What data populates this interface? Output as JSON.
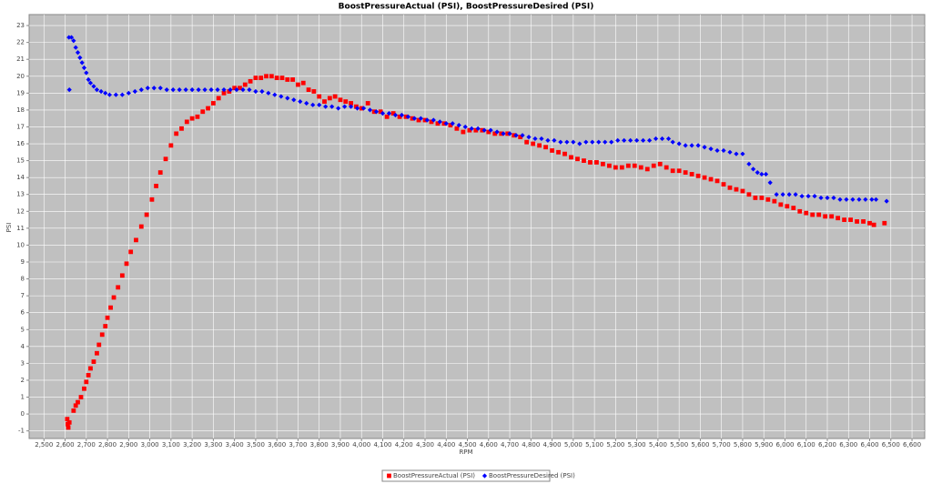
{
  "chart_data": {
    "type": "scatter",
    "title": "BoostPressureActual (PSI), BoostPressureDesired (PSI)",
    "x_label": "RPM",
    "y_label": "PSI",
    "xlim": [
      2430,
      6660
    ],
    "ylim": [
      -1.45,
      23.65
    ],
    "xticks": [
      {
        "value": 2500,
        "label": "2,500"
      },
      {
        "value": 2600,
        "label": "2,600"
      },
      {
        "value": 2700,
        "label": "2,700"
      },
      {
        "value": 2800,
        "label": "2,800"
      },
      {
        "value": 2900,
        "label": "2,900"
      },
      {
        "value": 3000,
        "label": "3,000"
      },
      {
        "value": 3100,
        "label": "3,100"
      },
      {
        "value": 3200,
        "label": "3,200"
      },
      {
        "value": 3300,
        "label": "3,300"
      },
      {
        "value": 3400,
        "label": "3,400"
      },
      {
        "value": 3500,
        "label": "3,500"
      },
      {
        "value": 3600,
        "label": "3,600"
      },
      {
        "value": 3700,
        "label": "3,700"
      },
      {
        "value": 3800,
        "label": "3,800"
      },
      {
        "value": 3900,
        "label": "3,900"
      },
      {
        "value": 4000,
        "label": "4,000"
      },
      {
        "value": 4100,
        "label": "4,100"
      },
      {
        "value": 4200,
        "label": "4,200"
      },
      {
        "value": 4300,
        "label": "4,300"
      },
      {
        "value": 4400,
        "label": "4,400"
      },
      {
        "value": 4500,
        "label": "4,500"
      },
      {
        "value": 4600,
        "label": "4,600"
      },
      {
        "value": 4700,
        "label": "4,700"
      },
      {
        "value": 4800,
        "label": "4,800"
      },
      {
        "value": 4900,
        "label": "4,900"
      },
      {
        "value": 5000,
        "label": "5,000"
      },
      {
        "value": 5100,
        "label": "5,100"
      },
      {
        "value": 5200,
        "label": "5,200"
      },
      {
        "value": 5300,
        "label": "5,300"
      },
      {
        "value": 5400,
        "label": "5,400"
      },
      {
        "value": 5500,
        "label": "5,500"
      },
      {
        "value": 5600,
        "label": "5,600"
      },
      {
        "value": 5700,
        "label": "5,700"
      },
      {
        "value": 5800,
        "label": "5,800"
      },
      {
        "value": 5900,
        "label": "5,900"
      },
      {
        "value": 6000,
        "label": "6,000"
      },
      {
        "value": 6100,
        "label": "6,100"
      },
      {
        "value": 6200,
        "label": "6,200"
      },
      {
        "value": 6300,
        "label": "6,300"
      },
      {
        "value": 6400,
        "label": "6,400"
      },
      {
        "value": 6500,
        "label": "6,500"
      },
      {
        "value": 6600,
        "label": "6,600"
      }
    ],
    "yticks": [
      -1,
      0,
      1,
      2,
      3,
      4,
      5,
      6,
      7,
      8,
      9,
      10,
      11,
      12,
      13,
      14,
      15,
      16,
      17,
      18,
      19,
      20,
      21,
      22,
      23
    ],
    "grid": true,
    "legend": "bottom",
    "series": [
      {
        "name": "BoostPressureActual (PSI)",
        "color": "#ff0000",
        "marker": "square",
        "x": [
          2610,
          2612,
          2615,
          2620,
          2640,
          2650,
          2660,
          2675,
          2690,
          2700,
          2710,
          2720,
          2735,
          2750,
          2760,
          2775,
          2790,
          2800,
          2815,
          2830,
          2850,
          2870,
          2890,
          2910,
          2935,
          2960,
          2985,
          3010,
          3030,
          3050,
          3075,
          3100,
          3125,
          3150,
          3175,
          3200,
          3225,
          3250,
          3275,
          3300,
          3325,
          3350,
          3375,
          3400,
          3425,
          3450,
          3475,
          3500,
          3525,
          3550,
          3575,
          3600,
          3625,
          3650,
          3675,
          3700,
          3725,
          3750,
          3775,
          3800,
          3825,
          3850,
          3875,
          3900,
          3925,
          3950,
          3975,
          4000,
          4030,
          4060,
          4090,
          4120,
          4150,
          4180,
          4210,
          4240,
          4270,
          4300,
          4330,
          4360,
          4390,
          4420,
          4450,
          4480,
          4510,
          4540,
          4570,
          4600,
          4630,
          4660,
          4690,
          4720,
          4750,
          4780,
          4810,
          4840,
          4870,
          4900,
          4930,
          4960,
          4990,
          5020,
          5050,
          5080,
          5110,
          5140,
          5170,
          5200,
          5230,
          5260,
          5290,
          5320,
          5350,
          5380,
          5410,
          5440,
          5470,
          5500,
          5530,
          5560,
          5590,
          5620,
          5650,
          5680,
          5710,
          5740,
          5770,
          5800,
          5830,
          5860,
          5890,
          5920,
          5950,
          5980,
          6010,
          6040,
          6070,
          6100,
          6130,
          6160,
          6190,
          6220,
          6250,
          6280,
          6310,
          6340,
          6370,
          6400,
          6420,
          6470
        ],
        "values": [
          -0.3,
          -0.6,
          -0.8,
          -0.5,
          0.2,
          0.5,
          0.7,
          1.0,
          1.5,
          1.9,
          2.3,
          2.7,
          3.1,
          3.6,
          4.1,
          4.7,
          5.2,
          5.7,
          6.3,
          6.9,
          7.5,
          8.2,
          8.9,
          9.6,
          10.3,
          11.1,
          11.8,
          12.7,
          13.5,
          14.3,
          15.1,
          15.9,
          16.6,
          16.9,
          17.3,
          17.5,
          17.6,
          17.9,
          18.1,
          18.4,
          18.7,
          19.0,
          19.1,
          19.3,
          19.3,
          19.5,
          19.7,
          19.9,
          19.9,
          20.0,
          20.0,
          19.9,
          19.9,
          19.8,
          19.8,
          19.5,
          19.6,
          19.2,
          19.1,
          18.8,
          18.5,
          18.7,
          18.8,
          18.6,
          18.5,
          18.4,
          18.2,
          18.1,
          18.4,
          17.9,
          17.9,
          17.6,
          17.8,
          17.6,
          17.6,
          17.5,
          17.4,
          17.4,
          17.3,
          17.2,
          17.2,
          17.1,
          16.9,
          16.7,
          16.8,
          16.8,
          16.8,
          16.7,
          16.6,
          16.6,
          16.6,
          16.5,
          16.4,
          16.1,
          16.0,
          15.9,
          15.8,
          15.6,
          15.5,
          15.4,
          15.2,
          15.1,
          15.0,
          14.9,
          14.9,
          14.8,
          14.7,
          14.6,
          14.6,
          14.7,
          14.7,
          14.6,
          14.5,
          14.7,
          14.8,
          14.6,
          14.4,
          14.4,
          14.3,
          14.2,
          14.1,
          14.0,
          13.9,
          13.8,
          13.6,
          13.4,
          13.3,
          13.2,
          13.0,
          12.8,
          12.8,
          12.7,
          12.6,
          12.4,
          12.3,
          12.2,
          12.0,
          11.9,
          11.8,
          11.8,
          11.7,
          11.7,
          11.6,
          11.5,
          11.5,
          11.4,
          11.4,
          11.3,
          11.2,
          11.3
        ]
      },
      {
        "name": "BoostPressureDesired (PSI)",
        "color": "#0000ff",
        "marker": "diamond",
        "x": [
          2620,
          2618,
          2630,
          2640,
          2650,
          2660,
          2670,
          2680,
          2690,
          2700,
          2710,
          2720,
          2735,
          2750,
          2770,
          2790,
          2810,
          2840,
          2870,
          2900,
          2930,
          2960,
          2990,
          3020,
          3050,
          3080,
          3110,
          3140,
          3170,
          3200,
          3230,
          3260,
          3290,
          3320,
          3350,
          3380,
          3410,
          3440,
          3470,
          3500,
          3530,
          3560,
          3590,
          3620,
          3650,
          3680,
          3710,
          3740,
          3770,
          3800,
          3830,
          3860,
          3890,
          3920,
          3950,
          3980,
          4010,
          4040,
          4070,
          4100,
          4130,
          4160,
          4190,
          4220,
          4250,
          4280,
          4310,
          4340,
          4370,
          4400,
          4430,
          4460,
          4490,
          4520,
          4550,
          4580,
          4610,
          4640,
          4670,
          4700,
          4730,
          4760,
          4790,
          4820,
          4850,
          4880,
          4910,
          4940,
          4970,
          5000,
          5030,
          5060,
          5090,
          5120,
          5150,
          5180,
          5210,
          5240,
          5270,
          5300,
          5330,
          5360,
          5390,
          5420,
          5450,
          5470,
          5500,
          5530,
          5560,
          5590,
          5620,
          5650,
          5680,
          5710,
          5740,
          5770,
          5800,
          5830,
          5850,
          5870,
          5890,
          5910,
          5930,
          5960,
          5990,
          6020,
          6050,
          6080,
          6110,
          6140,
          6170,
          6200,
          6230,
          6260,
          6290,
          6320,
          6350,
          6380,
          6410,
          6430,
          6480
        ],
        "values": [
          19.2,
          22.3,
          22.3,
          22.1,
          21.7,
          21.4,
          21.1,
          20.8,
          20.5,
          20.2,
          19.8,
          19.6,
          19.4,
          19.2,
          19.1,
          19.0,
          18.9,
          18.9,
          18.9,
          19.0,
          19.1,
          19.2,
          19.3,
          19.3,
          19.3,
          19.2,
          19.2,
          19.2,
          19.2,
          19.2,
          19.2,
          19.2,
          19.2,
          19.2,
          19.2,
          19.2,
          19.2,
          19.2,
          19.2,
          19.1,
          19.1,
          19.0,
          18.9,
          18.8,
          18.7,
          18.6,
          18.5,
          18.4,
          18.3,
          18.3,
          18.2,
          18.2,
          18.1,
          18.2,
          18.2,
          18.1,
          18.1,
          18.0,
          17.9,
          17.8,
          17.8,
          17.7,
          17.7,
          17.6,
          17.5,
          17.5,
          17.4,
          17.4,
          17.3,
          17.2,
          17.2,
          17.1,
          17.0,
          16.9,
          16.9,
          16.8,
          16.8,
          16.7,
          16.6,
          16.6,
          16.5,
          16.5,
          16.4,
          16.3,
          16.3,
          16.2,
          16.2,
          16.1,
          16.1,
          16.1,
          16.0,
          16.1,
          16.1,
          16.1,
          16.1,
          16.1,
          16.2,
          16.2,
          16.2,
          16.2,
          16.2,
          16.2,
          16.3,
          16.3,
          16.3,
          16.1,
          16.0,
          15.9,
          15.9,
          15.9,
          15.8,
          15.7,
          15.6,
          15.6,
          15.5,
          15.4,
          15.4,
          14.8,
          14.5,
          14.3,
          14.2,
          14.2,
          13.7,
          13.0,
          13.0,
          13.0,
          13.0,
          12.9,
          12.9,
          12.9,
          12.8,
          12.8,
          12.8,
          12.7,
          12.7,
          12.7,
          12.7,
          12.7,
          12.7,
          12.7,
          12.6
        ]
      }
    ]
  }
}
